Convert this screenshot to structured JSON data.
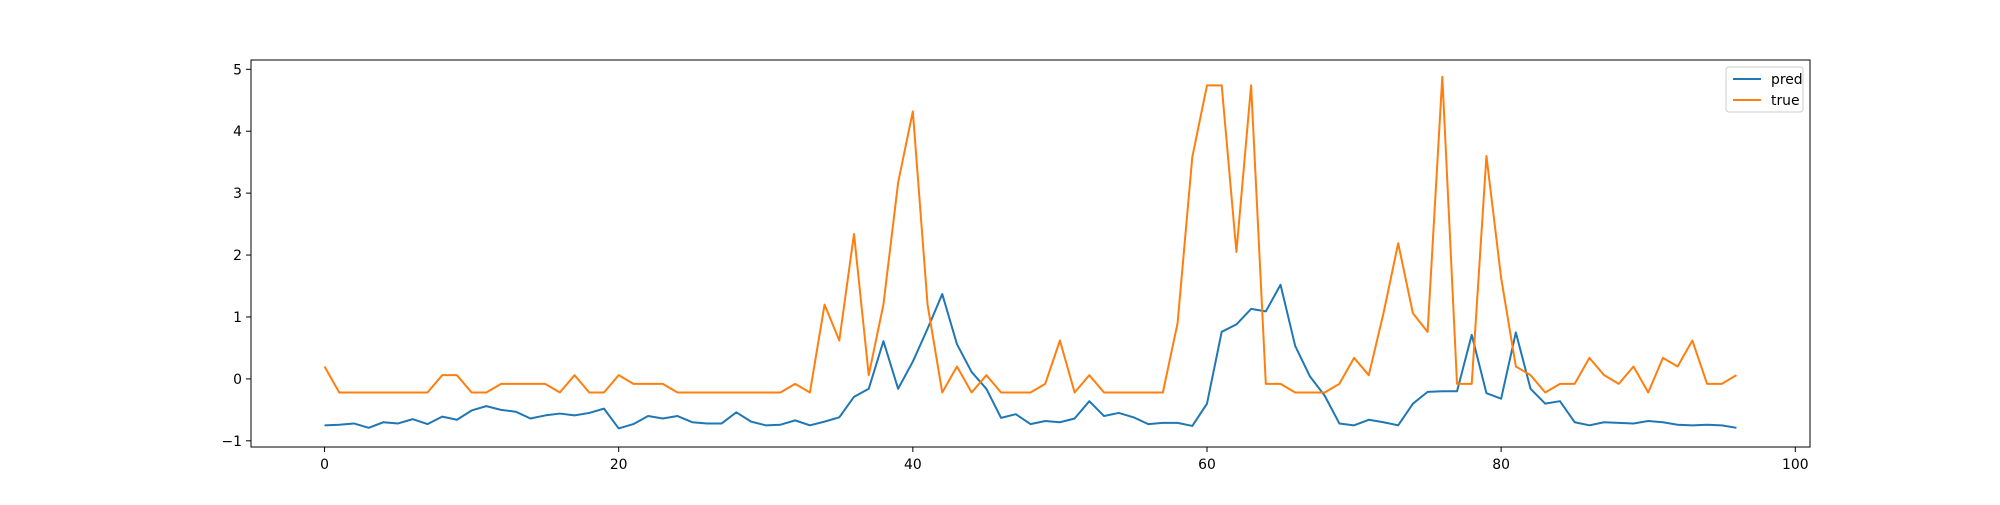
{
  "chart_data": {
    "type": "line",
    "title": "",
    "xlabel": "",
    "ylabel": "",
    "xlim": [
      -5,
      101
    ],
    "ylim": [
      -1.1,
      5.15
    ],
    "xticks": [
      0,
      20,
      40,
      60,
      80,
      100
    ],
    "yticks": [
      -1,
      0,
      1,
      2,
      3,
      4,
      5
    ],
    "xtick_labels": [
      "0",
      "20",
      "40",
      "60",
      "80",
      "100"
    ],
    "ytick_labels": [
      "−1",
      "0",
      "1",
      "2",
      "3",
      "4",
      "5"
    ],
    "grid": false,
    "legend": {
      "placement": "top-right",
      "entries": [
        "pred",
        "true"
      ]
    },
    "series": [
      {
        "name": "pred",
        "color": "#1f77b4",
        "x": [
          0,
          1,
          2,
          3,
          4,
          5,
          6,
          7,
          8,
          9,
          10,
          11,
          12,
          13,
          14,
          15,
          16,
          17,
          18,
          19,
          20,
          21,
          22,
          23,
          24,
          25,
          26,
          27,
          28,
          29,
          30,
          31,
          32,
          33,
          34,
          35,
          36,
          37,
          38,
          39,
          40,
          41,
          42,
          43,
          44,
          45,
          46,
          47,
          48,
          49,
          50,
          51,
          52,
          53,
          54,
          55,
          56,
          57,
          58,
          59,
          60,
          61,
          62,
          63,
          64,
          65,
          66,
          67,
          68,
          69,
          70,
          71,
          72,
          73,
          74,
          75,
          76,
          77,
          78,
          79,
          80,
          81,
          82,
          83,
          84,
          85,
          86,
          87,
          88,
          89,
          90,
          91,
          92,
          93,
          94,
          95,
          96
        ],
        "values": [
          -0.75,
          -0.74,
          -0.72,
          -0.79,
          -0.7,
          -0.72,
          -0.65,
          -0.73,
          -0.61,
          -0.66,
          -0.51,
          -0.44,
          -0.5,
          -0.53,
          -0.64,
          -0.59,
          -0.56,
          -0.59,
          -0.55,
          -0.48,
          -0.8,
          -0.73,
          -0.6,
          -0.64,
          -0.6,
          -0.7,
          -0.72,
          -0.72,
          -0.54,
          -0.69,
          -0.75,
          -0.74,
          -0.67,
          -0.75,
          -0.69,
          -0.62,
          -0.29,
          -0.16,
          0.61,
          -0.16,
          0.28,
          0.81,
          1.37,
          0.56,
          0.11,
          -0.16,
          -0.63,
          -0.57,
          -0.73,
          -0.68,
          -0.7,
          -0.64,
          -0.36,
          -0.6,
          -0.55,
          -0.62,
          -0.73,
          -0.71,
          -0.71,
          -0.76,
          -0.4,
          0.76,
          0.88,
          1.13,
          1.09,
          1.52,
          0.53,
          0.04,
          -0.27,
          -0.72,
          -0.75,
          -0.66,
          -0.7,
          -0.75,
          -0.4,
          -0.21,
          -0.2,
          -0.2,
          0.71,
          -0.23,
          -0.32,
          0.75,
          -0.16,
          -0.4,
          -0.36,
          -0.7,
          -0.75,
          -0.7,
          -0.71,
          -0.72,
          -0.68,
          -0.7,
          -0.74,
          -0.75,
          -0.74,
          -0.75,
          -0.79
        ]
      },
      {
        "name": "true",
        "color": "#ff7f0e",
        "x": [
          0,
          1,
          2,
          3,
          4,
          5,
          6,
          7,
          8,
          9,
          10,
          11,
          12,
          13,
          14,
          15,
          16,
          17,
          18,
          19,
          20,
          21,
          22,
          23,
          24,
          25,
          26,
          27,
          28,
          29,
          30,
          31,
          32,
          33,
          34,
          35,
          36,
          37,
          38,
          39,
          40,
          41,
          42,
          43,
          44,
          45,
          46,
          47,
          48,
          49,
          50,
          51,
          52,
          53,
          54,
          55,
          56,
          57,
          58,
          59,
          60,
          61,
          62,
          63,
          64,
          65,
          66,
          67,
          68,
          69,
          70,
          71,
          72,
          73,
          74,
          75,
          76,
          77,
          78,
          79,
          80,
          81,
          82,
          83,
          84,
          85,
          86,
          87,
          88,
          89,
          90,
          91,
          92,
          93,
          94,
          95,
          96
        ],
        "values": [
          0.2,
          -0.22,
          -0.22,
          -0.22,
          -0.22,
          -0.22,
          -0.22,
          -0.22,
          0.06,
          0.06,
          -0.22,
          -0.22,
          -0.08,
          -0.08,
          -0.08,
          -0.08,
          -0.22,
          0.06,
          -0.22,
          -0.22,
          0.06,
          -0.08,
          -0.08,
          -0.08,
          -0.22,
          -0.22,
          -0.22,
          -0.22,
          -0.22,
          -0.22,
          -0.22,
          -0.22,
          -0.08,
          -0.22,
          1.2,
          0.62,
          2.34,
          0.06,
          1.2,
          3.17,
          4.32,
          1.2,
          -0.22,
          0.2,
          -0.22,
          0.06,
          -0.22,
          -0.22,
          -0.22,
          -0.08,
          0.62,
          -0.22,
          0.06,
          -0.22,
          -0.22,
          -0.22,
          -0.22,
          -0.22,
          0.9,
          3.58,
          4.74,
          4.74,
          2.05,
          4.74,
          -0.08,
          -0.08,
          -0.22,
          -0.22,
          -0.22,
          -0.08,
          0.34,
          0.06,
          1.06,
          2.19,
          1.06,
          0.76,
          4.88,
          -0.08,
          -0.08,
          3.6,
          1.63,
          0.2,
          0.06,
          -0.22,
          -0.08,
          -0.08,
          0.34,
          0.06,
          -0.08,
          0.2,
          -0.22,
          0.34,
          0.2,
          0.62,
          -0.08,
          -0.08,
          0.06
        ]
      }
    ]
  }
}
